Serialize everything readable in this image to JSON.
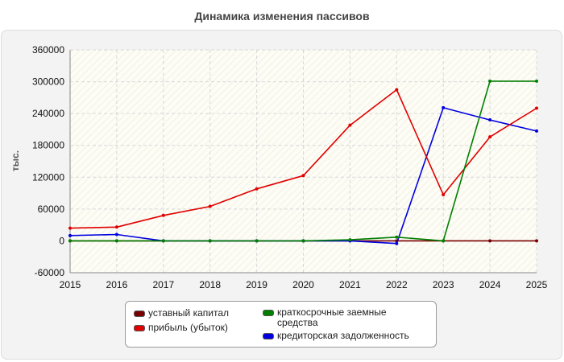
{
  "chart_data": {
    "type": "line",
    "title": "Динамика изменения пассивов",
    "ylabel": "тыс.",
    "xlabel": "",
    "x": [
      2015,
      2016,
      2017,
      2018,
      2019,
      2020,
      2021,
      2022,
      2023,
      2024,
      2025
    ],
    "ylim": [
      -60000,
      360000
    ],
    "yticks": [
      -60000,
      0,
      60000,
      120000,
      180000,
      240000,
      300000,
      360000
    ],
    "grid": true,
    "legend_position": "bottom",
    "series": [
      {
        "name": "уставный капитал",
        "color": "#7a0000",
        "values": [
          0,
          0,
          0,
          0,
          0,
          0,
          0,
          0,
          0,
          0,
          0
        ]
      },
      {
        "name": "прибыль (убыток)",
        "color": "#e00000",
        "values": [
          24000,
          26000,
          48000,
          65000,
          98000,
          123000,
          218000,
          285000,
          87000,
          196000,
          250000
        ]
      },
      {
        "name": "краткосрочные заемные средства",
        "color": "#008000",
        "values": [
          0,
          0,
          0,
          0,
          0,
          0,
          2000,
          7000,
          0,
          301000,
          301000
        ]
      },
      {
        "name": "кредиторская задолженность",
        "color": "#0000e0",
        "values": [
          10000,
          12000,
          0,
          0,
          0,
          0,
          0,
          -5000,
          251000,
          228000,
          207000
        ]
      }
    ]
  }
}
